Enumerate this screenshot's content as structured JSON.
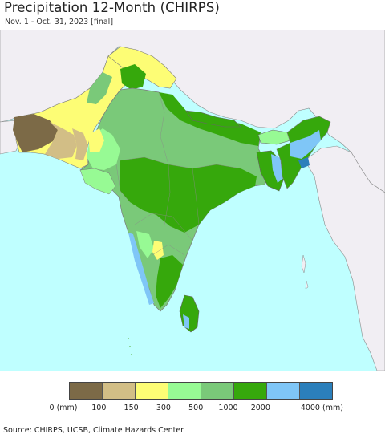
{
  "title": "Precipitation 12-Month (CHIRPS)",
  "subtitle": "Nov. 1 - Oct. 31, 2023 [final]",
  "colors": {
    "ocean": "#bfffff",
    "outside_land": "#f1eef3",
    "border": "#7a7a7a"
  },
  "legend": {
    "swatches": [
      {
        "color": "#7c6a47"
      },
      {
        "color": "#d2be86"
      },
      {
        "color": "#fdfd75"
      },
      {
        "color": "#97fa94"
      },
      {
        "color": "#7ac979"
      },
      {
        "color": "#36a80c"
      },
      {
        "color": "#7fc6f7"
      },
      {
        "color": "#2b7fbb"
      }
    ],
    "labels": [
      "0 (mm)",
      "100",
      "150",
      "300",
      "500",
      "1000",
      "2000",
      "4000 (mm)"
    ]
  },
  "source": "Source: CHIRPS, UCSB, Climate Hazards Center"
}
